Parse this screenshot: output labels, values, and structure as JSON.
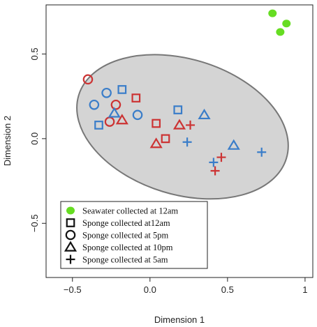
{
  "chart_data": {
    "type": "scatter",
    "xlabel": "Dimension 1",
    "ylabel": "Dimension 2",
    "xlim": [
      -0.67,
      1.05
    ],
    "ylim": [
      -0.82,
      0.79
    ],
    "xticks": [
      -0.5,
      0.0,
      0.5,
      1.0
    ],
    "xtick_labels": [
      "−0.5",
      "0.0",
      "0.5",
      "1"
    ],
    "yticks": [
      -0.5,
      0.0,
      0.5
    ],
    "ytick_labels": [
      "−0.5",
      "0.0",
      "0.5"
    ],
    "grid": false,
    "legend_position": "bottom-left",
    "colors": {
      "seawater": "#66dd22",
      "red": "#cc3333",
      "blue": "#3a7dc9",
      "ellipse_fill": "#d4d4d4",
      "ellipse_stroke": "#777777"
    },
    "ellipse": {
      "center": [
        0.21,
        0.07
      ],
      "radius_x": 0.7,
      "radius_y": 0.4,
      "rotation_deg": 17
    },
    "series": [
      {
        "name": "Seawater collected at 12am",
        "marker": "filled-circle",
        "points": [
          {
            "x": 0.79,
            "y": 0.74,
            "color": "seawater"
          },
          {
            "x": 0.88,
            "y": 0.68,
            "color": "seawater"
          },
          {
            "x": 0.84,
            "y": 0.63,
            "color": "seawater"
          }
        ]
      },
      {
        "name": "Sponge collected at12am",
        "marker": "square",
        "points": [
          {
            "x": -0.18,
            "y": 0.29,
            "color": "blue"
          },
          {
            "x": -0.33,
            "y": 0.08,
            "color": "blue"
          },
          {
            "x": 0.18,
            "y": 0.17,
            "color": "blue"
          },
          {
            "x": -0.09,
            "y": 0.24,
            "color": "red"
          },
          {
            "x": 0.04,
            "y": 0.09,
            "color": "red"
          },
          {
            "x": 0.1,
            "y": 0.0,
            "color": "red"
          }
        ]
      },
      {
        "name": "Sponge collected at 5pm",
        "marker": "circle",
        "points": [
          {
            "x": -0.36,
            "y": 0.2,
            "color": "blue"
          },
          {
            "x": -0.28,
            "y": 0.27,
            "color": "blue"
          },
          {
            "x": -0.08,
            "y": 0.14,
            "color": "blue"
          },
          {
            "x": -0.4,
            "y": 0.35,
            "color": "red"
          },
          {
            "x": -0.22,
            "y": 0.2,
            "color": "red"
          },
          {
            "x": -0.26,
            "y": 0.1,
            "color": "red"
          }
        ]
      },
      {
        "name": "Sponge collected at 10pm",
        "marker": "triangle",
        "points": [
          {
            "x": -0.23,
            "y": 0.15,
            "color": "blue"
          },
          {
            "x": 0.35,
            "y": 0.14,
            "color": "blue"
          },
          {
            "x": 0.54,
            "y": -0.04,
            "color": "blue"
          },
          {
            "x": -0.18,
            "y": 0.11,
            "color": "red"
          },
          {
            "x": 0.19,
            "y": 0.08,
            "color": "red"
          },
          {
            "x": 0.04,
            "y": -0.03,
            "color": "red"
          }
        ]
      },
      {
        "name": "Sponge collected at 5am",
        "marker": "plus",
        "points": [
          {
            "x": 0.24,
            "y": -0.02,
            "color": "blue"
          },
          {
            "x": 0.41,
            "y": -0.14,
            "color": "blue"
          },
          {
            "x": 0.72,
            "y": -0.08,
            "color": "blue"
          },
          {
            "x": 0.26,
            "y": 0.08,
            "color": "red"
          },
          {
            "x": 0.46,
            "y": -0.11,
            "color": "red"
          },
          {
            "x": 0.42,
            "y": -0.19,
            "color": "red"
          }
        ]
      }
    ]
  }
}
